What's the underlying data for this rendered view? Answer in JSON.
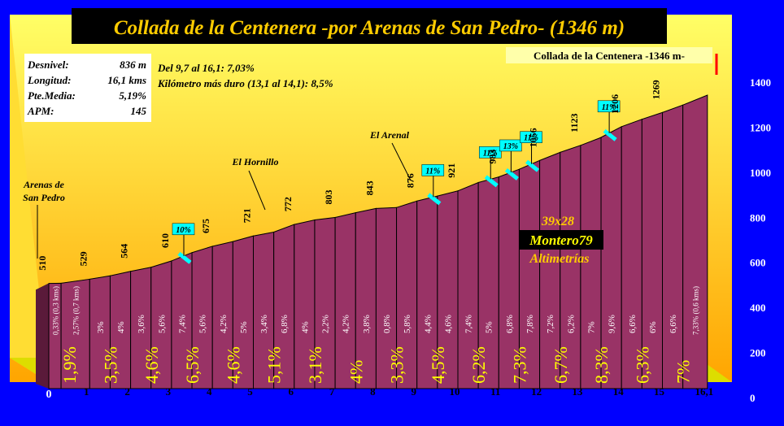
{
  "chart_data": {
    "type": "area",
    "title": "Collada de la Centenera -por Arenas de San Pedro- (1346 m)",
    "summit_label": "Collada de la Centenera  -1346 m-",
    "stats": [
      {
        "label": "Desnivel:",
        "value": "836 m"
      },
      {
        "label": "Longitud:",
        "value": "16,1 kms"
      },
      {
        "label": "Pte.Media:",
        "value": "5,19%"
      },
      {
        "label": "APM:",
        "value": "145"
      }
    ],
    "notes": [
      "Del 9,7 al 16,1: 7,03%",
      "Kilómetro más duro (13,1 al 14,1): 8,5%"
    ],
    "credit": [
      "39x28",
      "Montero79",
      "Altimetrías"
    ],
    "ylim": [
      0,
      1400
    ],
    "y_ticks": [
      0,
      200,
      400,
      600,
      800,
      1000,
      1200,
      1400
    ],
    "x_km_ticks": [
      "0",
      "1",
      "2",
      "3",
      "4",
      "5",
      "6",
      "7",
      "8",
      "9",
      "10",
      "11",
      "12",
      "13",
      "14",
      "15",
      "16,1"
    ],
    "points": [
      {
        "km": 0,
        "alt": 510
      },
      {
        "km": 0.3,
        "alt": 511
      },
      {
        "km": 1.0,
        "alt": 529
      },
      {
        "km": 1.5,
        "alt": 544
      },
      {
        "km": 2.0,
        "alt": 564
      },
      {
        "km": 2.5,
        "alt": 582
      },
      {
        "km": 3.0,
        "alt": 610
      },
      {
        "km": 3.5,
        "alt": 647
      },
      {
        "km": 4.0,
        "alt": 675
      },
      {
        "km": 4.5,
        "alt": 696
      },
      {
        "km": 5.0,
        "alt": 721
      },
      {
        "km": 5.5,
        "alt": 738
      },
      {
        "km": 6.0,
        "alt": 772
      },
      {
        "km": 6.5,
        "alt": 792
      },
      {
        "km": 7.0,
        "alt": 803
      },
      {
        "km": 7.5,
        "alt": 824
      },
      {
        "km": 8.0,
        "alt": 843
      },
      {
        "km": 8.5,
        "alt": 847
      },
      {
        "km": 9.0,
        "alt": 876
      },
      {
        "km": 9.5,
        "alt": 898
      },
      {
        "km": 10.0,
        "alt": 921
      },
      {
        "km": 10.5,
        "alt": 958
      },
      {
        "km": 11.0,
        "alt": 983
      },
      {
        "km": 11.5,
        "alt": 1017
      },
      {
        "km": 12.0,
        "alt": 1056
      },
      {
        "km": 12.5,
        "alt": 1092
      },
      {
        "km": 13.0,
        "alt": 1123
      },
      {
        "km": 13.5,
        "alt": 1158
      },
      {
        "km": 14.0,
        "alt": 1206
      },
      {
        "km": 14.5,
        "alt": 1239
      },
      {
        "km": 15.0,
        "alt": 1269
      },
      {
        "km": 15.5,
        "alt": 1302
      },
      {
        "km": 16.1,
        "alt": 1346
      }
    ],
    "segment_gradients": [
      "0,33% (0,3 kms)",
      "2,57% (0,7 kms)",
      "3%",
      "4%",
      "3,6%",
      "5,6%",
      "7,4%",
      "5,6%",
      "4,2%",
      "5%",
      "3,4%",
      "6,8%",
      "4%",
      "2,2%",
      "4,2%",
      "3,8%",
      "0,8%",
      "5,8%",
      "4,4%",
      "4,6%",
      "7,4%",
      "5%",
      "6,8%",
      "7,8%",
      "7,2%",
      "6,2%",
      "7%",
      "9,6%",
      "6,6%",
      "6%",
      "6,6%",
      "7,33% (0,6 kms)"
    ],
    "km_gradients": [
      "1,9%",
      "3,5%",
      "4,6%",
      "6,5%",
      "4,6%",
      "5,1%",
      "3,1%",
      "4%",
      "3,3%",
      "4,5%",
      "6,2%",
      "7,3%",
      "6,7%",
      "8,3%",
      "6,3%",
      "7%"
    ],
    "altitude_labels": [
      {
        "km": 0,
        "text": "510"
      },
      {
        "km": 1.0,
        "text": "529"
      },
      {
        "km": 2.0,
        "text": "564"
      },
      {
        "km": 3.0,
        "text": "610"
      },
      {
        "km": 4.0,
        "text": "675"
      },
      {
        "km": 5.0,
        "text": "721"
      },
      {
        "km": 6.0,
        "text": "772"
      },
      {
        "km": 7.0,
        "text": "803"
      },
      {
        "km": 8.0,
        "text": "843"
      },
      {
        "km": 9.0,
        "text": "876"
      },
      {
        "km": 10.0,
        "text": "921"
      },
      {
        "km": 11.0,
        "text": "983"
      },
      {
        "km": 12.0,
        "text": "1056"
      },
      {
        "km": 13.0,
        "text": "1123"
      },
      {
        "km": 14.0,
        "text": "1206"
      },
      {
        "km": 15.0,
        "text": "1269"
      }
    ],
    "steep_ramps": [
      {
        "km": 3.3,
        "text": "10%"
      },
      {
        "km": 9.4,
        "text": "11%"
      },
      {
        "km": 10.8,
        "text": "11%"
      },
      {
        "km": 11.3,
        "text": "13%"
      },
      {
        "km": 11.8,
        "text": "11%"
      },
      {
        "km": 13.7,
        "text": "11%"
      }
    ],
    "places": [
      {
        "km": 0,
        "text": [
          "Arenas de",
          "San Pedro"
        ]
      },
      {
        "km": 5.1,
        "text": [
          "El Hornillo"
        ]
      },
      {
        "km": 8.8,
        "text": [
          "El Arenal"
        ]
      }
    ],
    "colors": {
      "background": "#0000ff",
      "panel_top": "#ffff66",
      "panel_bottom": "#ffa500",
      "profile": "#993366",
      "ramp": "#00ffff",
      "km_label": "#ffff00",
      "title_bg": "#000000",
      "title_text": "#ffcc00"
    }
  }
}
